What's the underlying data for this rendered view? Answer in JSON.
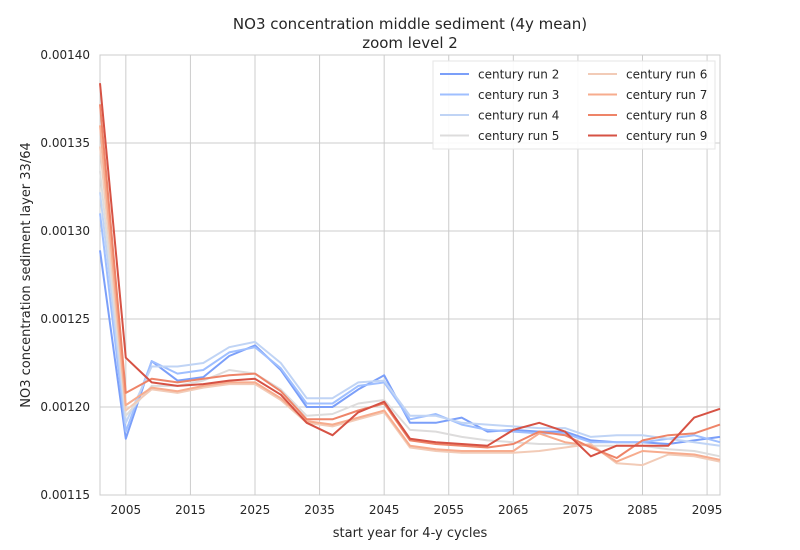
{
  "chart_data": {
    "type": "line",
    "title": "NO3 concentration middle sediment (4y mean)",
    "subtitle": "zoom level 2",
    "xlabel": "start year for 4-y cycles",
    "ylabel": "NO3 concentration sediment layer 33/64",
    "xlim": [
      2001,
      2097
    ],
    "ylim": [
      0.00115,
      0.0014
    ],
    "xticks": [
      2005,
      2015,
      2025,
      2035,
      2045,
      2055,
      2065,
      2075,
      2085,
      2095
    ],
    "yticks": [
      "0.00115",
      "0.00120",
      "0.00125",
      "0.00130",
      "0.00135",
      "0.00140"
    ],
    "grid": true,
    "legend_position": "top-right",
    "x": [
      2001,
      2005,
      2009,
      2013,
      2017,
      2021,
      2025,
      2029,
      2033,
      2037,
      2041,
      2045,
      2049,
      2053,
      2057,
      2061,
      2065,
      2069,
      2073,
      2077,
      2081,
      2085,
      2089,
      2093,
      2097
    ],
    "series": [
      {
        "name": "century run 2",
        "color": "#7b9ff9",
        "values": [
          0.001289,
          0.001182,
          0.001226,
          0.001215,
          0.001217,
          0.001229,
          0.001235,
          0.001221,
          0.0012,
          0.0012,
          0.00121,
          0.001218,
          0.001191,
          0.001191,
          0.001194,
          0.001186,
          0.001187,
          0.001186,
          0.001186,
          0.001181,
          0.00118,
          0.00118,
          0.001179,
          0.001181,
          0.001183
        ]
      },
      {
        "name": "century run 3",
        "color": "#9fbfff",
        "values": [
          0.00131,
          0.001186,
          0.001226,
          0.001219,
          0.001221,
          0.001231,
          0.001234,
          0.001222,
          0.001202,
          0.001202,
          0.001212,
          0.001214,
          0.001193,
          0.001196,
          0.00119,
          0.001187,
          0.001186,
          0.001185,
          0.001185,
          0.00118,
          0.00118,
          0.00118,
          0.001182,
          0.001184,
          0.00118
        ]
      },
      {
        "name": "century run 4",
        "color": "#c0d4f5",
        "values": [
          0.001322,
          0.001191,
          0.001223,
          0.001223,
          0.001225,
          0.001234,
          0.001237,
          0.001225,
          0.001205,
          0.001205,
          0.001214,
          0.001215,
          0.001195,
          0.001195,
          0.001191,
          0.00119,
          0.001189,
          0.001188,
          0.001188,
          0.001183,
          0.001184,
          0.001184,
          0.001182,
          0.00118,
          0.001178
        ]
      },
      {
        "name": "century run 5",
        "color": "#dddcdc",
        "values": [
          0.001334,
          0.001195,
          0.001212,
          0.001212,
          0.001215,
          0.001221,
          0.001219,
          0.00121,
          0.001195,
          0.001196,
          0.001202,
          0.001204,
          0.001187,
          0.001186,
          0.001183,
          0.001181,
          0.00118,
          0.001179,
          0.001179,
          0.001178,
          0.001178,
          0.001178,
          0.001176,
          0.001175,
          0.001172
        ]
      },
      {
        "name": "century run 6",
        "color": "#f2cbb7",
        "values": [
          0.001348,
          0.001198,
          0.00121,
          0.001208,
          0.001211,
          0.001213,
          0.001213,
          0.001204,
          0.001191,
          0.001189,
          0.001193,
          0.001197,
          0.001177,
          0.001175,
          0.001174,
          0.001174,
          0.001174,
          0.001175,
          0.001177,
          0.001179,
          0.001168,
          0.001167,
          0.001173,
          0.001172,
          0.001169
        ]
      },
      {
        "name": "century run 7",
        "color": "#f7ac8e",
        "values": [
          0.00136,
          0.001201,
          0.001211,
          0.001209,
          0.001212,
          0.001214,
          0.001214,
          0.001205,
          0.001192,
          0.00119,
          0.001194,
          0.001198,
          0.001178,
          0.001176,
          0.001175,
          0.001175,
          0.001175,
          0.001185,
          0.00118,
          0.001178,
          0.001169,
          0.001175,
          0.001174,
          0.001173,
          0.00117
        ]
      },
      {
        "name": "century run 8",
        "color": "#ee8468",
        "values": [
          0.001372,
          0.001208,
          0.001216,
          0.001214,
          0.001216,
          0.001218,
          0.001219,
          0.001209,
          0.001193,
          0.001193,
          0.001198,
          0.001202,
          0.001181,
          0.001179,
          0.001178,
          0.001177,
          0.001179,
          0.001186,
          0.001184,
          0.001177,
          0.001171,
          0.001181,
          0.001184,
          0.001185,
          0.00119
        ]
      },
      {
        "name": "century run 9",
        "color": "#d65244",
        "values": [
          0.001384,
          0.001228,
          0.001214,
          0.001212,
          0.001213,
          0.001215,
          0.001216,
          0.001207,
          0.001191,
          0.001184,
          0.001197,
          0.001203,
          0.001182,
          0.00118,
          0.001179,
          0.001178,
          0.001187,
          0.001191,
          0.001186,
          0.001172,
          0.001178,
          0.001178,
          0.001178,
          0.001194,
          0.001199
        ]
      }
    ]
  }
}
